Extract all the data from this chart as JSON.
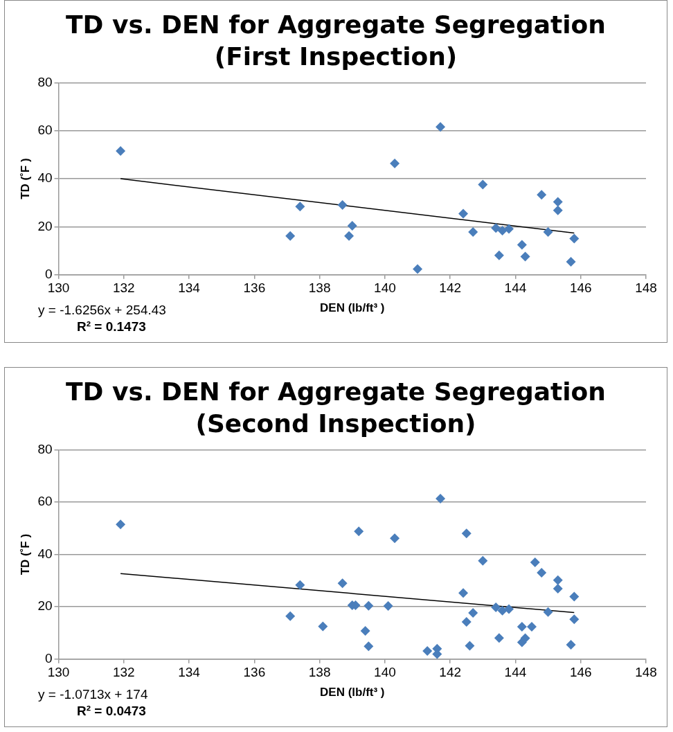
{
  "chart_data": [
    {
      "type": "scatter",
      "title": "TD vs. DEN for Aggregate Segregation (First Inspection)",
      "xlabel": "DEN (lb/ft³ )",
      "ylabel": "TD (˚F )",
      "annotations": [
        "y = -1.6256x + 254.43",
        "R² = 0.1473"
      ],
      "xlim": [
        130,
        148
      ],
      "xticks": [
        130,
        132,
        134,
        136,
        138,
        140,
        142,
        144,
        146,
        148
      ],
      "ylim": [
        0,
        80
      ],
      "yticks": [
        0,
        20,
        40,
        60,
        80
      ],
      "grid": "y",
      "legend": false,
      "marker": "diamond",
      "series": [
        {
          "color": "#4a7ebb",
          "x": [
            131.9,
            137.1,
            137.4,
            138.7,
            138.9,
            139.0,
            140.3,
            141.0,
            141.7,
            142.4,
            142.7,
            143.0,
            143.4,
            143.6,
            143.8,
            143.5,
            144.2,
            144.3,
            144.8,
            145.0,
            145.3,
            145.3,
            145.8,
            145.7
          ],
          "values": [
            51.6,
            16.2,
            28.4,
            29.1,
            16.2,
            20.4,
            46.4,
            2.4,
            61.6,
            25.5,
            17.8,
            37.6,
            19.5,
            18.4,
            19.1,
            8.1,
            12.5,
            7.6,
            33.3,
            17.8,
            30.4,
            26.8,
            15.1,
            5.4
          ]
        },
        {
          "type": "line",
          "color": "#000000",
          "marker": "none",
          "x": [
            131.9,
            145.8
          ],
          "values": [
            40.0,
            17.4
          ]
        }
      ]
    },
    {
      "type": "scatter",
      "title": "TD vs. DEN for Aggregate Segregation (Second Inspection)",
      "xlabel": "DEN (lb/ft³ )",
      "ylabel": "TD (˚F )",
      "annotations": [
        "y = -1.0713x + 174",
        "R² = 0.0473"
      ],
      "xlim": [
        130,
        148
      ],
      "xticks": [
        130,
        132,
        134,
        136,
        138,
        140,
        142,
        144,
        146,
        148
      ],
      "ylim": [
        0,
        80
      ],
      "yticks": [
        0,
        20,
        40,
        60,
        80
      ],
      "grid": "y",
      "legend": false,
      "marker": "diamond",
      "series": [
        {
          "color": "#4a7ebb",
          "x": [
            131.9,
            137.1,
            137.4,
            138.1,
            138.7,
            139.0,
            139.1,
            139.2,
            139.5,
            139.4,
            139.5,
            140.1,
            140.3,
            141.3,
            141.6,
            141.6,
            141.7,
            142.5,
            142.4,
            142.7,
            142.5,
            142.6,
            143.0,
            143.4,
            143.6,
            143.8,
            143.5,
            144.2,
            144.2,
            144.5,
            144.3,
            144.6,
            144.8,
            145.0,
            145.3,
            145.3,
            145.8,
            145.8,
            145.7
          ],
          "values": [
            51.5,
            16.4,
            28.3,
            12.5,
            29.0,
            20.6,
            20.6,
            48.8,
            20.4,
            10.8,
            4.9,
            20.3,
            46.2,
            3.1,
            4.0,
            1.9,
            61.3,
            48.0,
            25.3,
            17.7,
            14.2,
            5.1,
            37.6,
            19.8,
            18.5,
            19.1,
            8.1,
            12.4,
            6.4,
            12.4,
            8.0,
            37.0,
            33.0,
            18.0,
            30.2,
            26.9,
            23.9,
            15.2,
            5.5
          ]
        },
        {
          "type": "line",
          "color": "#000000",
          "marker": "none",
          "x": [
            131.9,
            145.8
          ],
          "values": [
            32.7,
            17.8
          ]
        }
      ]
    }
  ]
}
